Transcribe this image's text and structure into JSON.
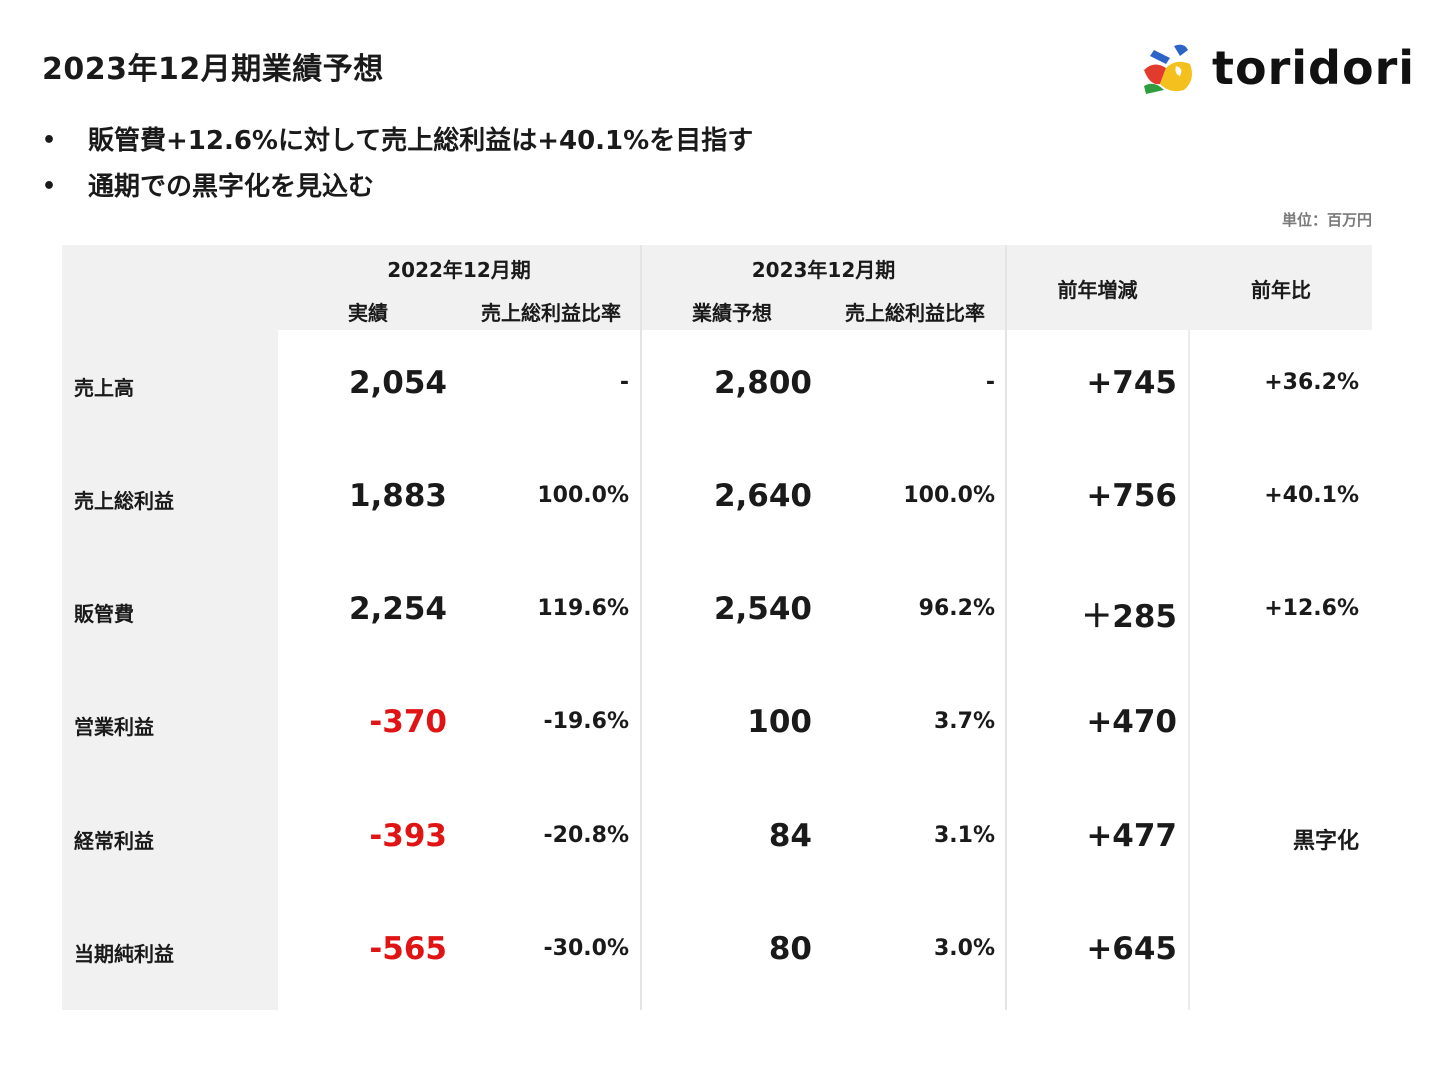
{
  "title": "2023年12月期業績予想",
  "logo": {
    "text": "toridori"
  },
  "bullets": [
    "販管費+12.6%に対して売上総利益は+40.1%を目指す",
    "通期での黒字化を見込む"
  ],
  "unit_label": "単位：百万円",
  "table": {
    "period_2022": "2022年12月期",
    "period_2023": "2023年12月期",
    "col_actual": "実績",
    "col_ratio_2022": "売上総利益比率",
    "col_forecast": "業績予想",
    "col_ratio_2023": "売上総利益比率",
    "col_change": "前年増減",
    "col_yoy": "前年比",
    "rows": [
      {
        "label": "売上高",
        "actual_2022": "2,054",
        "ratio_2022": "-",
        "forecast_2023": "2,800",
        "ratio_2023": "-",
        "change": "+745",
        "yoy": "+36.2%"
      },
      {
        "label": "売上総利益",
        "actual_2022": "1,883",
        "ratio_2022": "100.0%",
        "forecast_2023": "2,640",
        "ratio_2023": "100.0%",
        "change": "+756",
        "yoy": "+40.1%"
      },
      {
        "label": "販管費",
        "actual_2022": "2,254",
        "ratio_2022": "119.6%",
        "forecast_2023": "2,540",
        "ratio_2023": "96.2%",
        "change": "＋285",
        "yoy": "+12.6%"
      },
      {
        "label": "営業利益",
        "actual_2022": "-370",
        "ratio_2022": "-19.6%",
        "forecast_2023": "100",
        "ratio_2023": "3.7%",
        "change": "+470",
        "yoy": ""
      },
      {
        "label": "経常利益",
        "actual_2022": "-393",
        "ratio_2022": "-20.8%",
        "forecast_2023": "84",
        "ratio_2023": "3.1%",
        "change": "+477",
        "yoy": "黒字化"
      },
      {
        "label": "当期純利益",
        "actual_2022": "-565",
        "ratio_2022": "-30.0%",
        "forecast_2023": "80",
        "ratio_2023": "3.0%",
        "change": "+645",
        "yoy": ""
      }
    ]
  },
  "colors": {
    "negative": "#e01414",
    "header_bg": "#f1f1f1",
    "text": "#1a1a1a"
  }
}
